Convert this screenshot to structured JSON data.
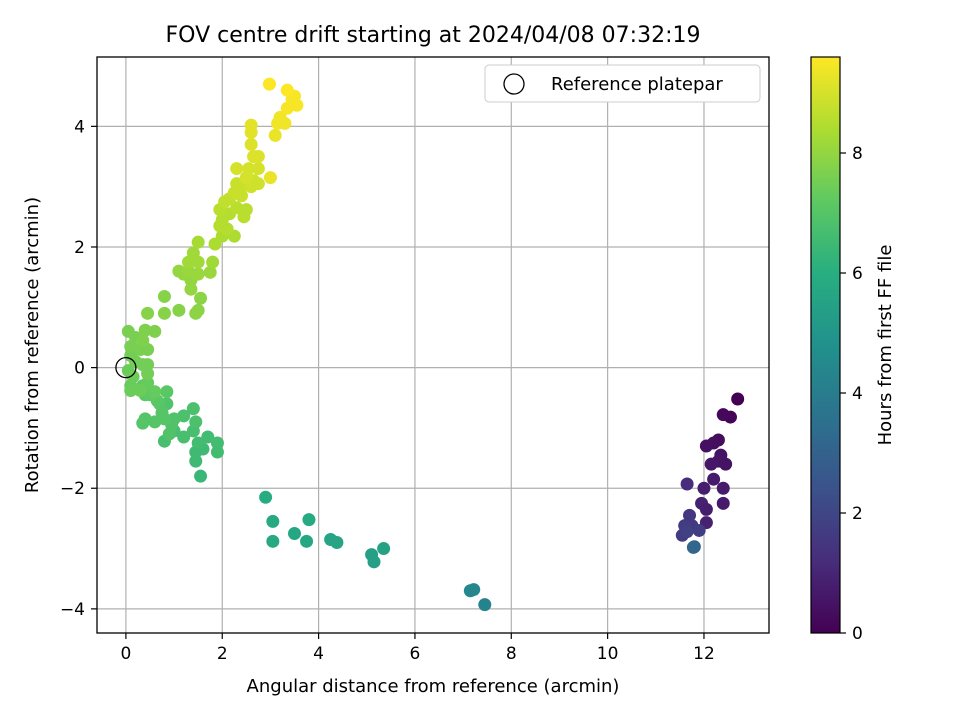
{
  "chart_data": {
    "type": "scatter",
    "title": "FOV centre drift starting at 2024/04/08 07:32:19",
    "xlabel": "Angular distance from reference (arcmin)",
    "ylabel": "Rotation from reference (arcmin)",
    "xlim": [
      -0.6,
      13.35
    ],
    "ylim": [
      -4.4,
      5.15
    ],
    "xticks": [
      0,
      2,
      4,
      6,
      8,
      10,
      12
    ],
    "yticks": [
      -4,
      -2,
      0,
      2,
      4
    ],
    "grid": true,
    "legend": {
      "placement": "top-right",
      "entries": [
        "Reference platepar"
      ]
    },
    "colorbar": {
      "label": "Hours from first FF file",
      "min": 0,
      "max": 9.6,
      "ticks": [
        0,
        2,
        4,
        6,
        8
      ],
      "colormap": "viridis"
    },
    "reference_point": {
      "x": 0,
      "y": 0,
      "label": "Reference platepar"
    },
    "series": [
      {
        "points": [
          [
            12.7,
            -0.52,
            0.0
          ],
          [
            12.55,
            -0.82,
            0.1
          ],
          [
            12.4,
            -0.78,
            0.2
          ],
          [
            12.3,
            -1.2,
            0.3
          ],
          [
            12.2,
            -1.25,
            0.35
          ],
          [
            12.05,
            -1.3,
            0.4
          ],
          [
            12.35,
            -1.45,
            0.5
          ],
          [
            12.3,
            -1.55,
            0.55
          ],
          [
            12.15,
            -1.6,
            0.6
          ],
          [
            12.45,
            -1.6,
            0.5
          ],
          [
            12.2,
            -1.85,
            0.7
          ],
          [
            12.0,
            -2.0,
            0.8
          ],
          [
            12.4,
            -2.0,
            0.7
          ],
          [
            12.4,
            -2.25,
            0.7
          ],
          [
            11.95,
            -2.25,
            0.9
          ],
          [
            12.05,
            -2.35,
            0.8
          ],
          [
            12.05,
            -2.57,
            0.9
          ],
          [
            11.65,
            -1.93,
            1.2
          ],
          [
            11.7,
            -2.45,
            1.5
          ],
          [
            11.75,
            -2.62,
            1.6
          ],
          [
            11.6,
            -2.62,
            1.7
          ],
          [
            11.55,
            -2.78,
            1.7
          ],
          [
            11.65,
            -2.72,
            1.8
          ],
          [
            11.9,
            -2.7,
            1.7
          ],
          [
            11.8,
            -2.97,
            2.6
          ],
          [
            11.78,
            -2.98,
            3.2
          ],
          [
            7.15,
            -3.7,
            4.5
          ],
          [
            7.22,
            -3.68,
            4.4
          ],
          [
            7.45,
            -3.93,
            4.2
          ],
          [
            5.1,
            -3.1,
            5.4
          ],
          [
            5.15,
            -3.22,
            5.4
          ],
          [
            5.35,
            -3.0,
            5.5
          ],
          [
            4.25,
            -2.85,
            5.6
          ],
          [
            4.38,
            -2.9,
            5.6
          ],
          [
            3.5,
            -2.75,
            5.7
          ],
          [
            3.75,
            -2.88,
            5.7
          ],
          [
            3.8,
            -2.52,
            5.8
          ],
          [
            3.05,
            -2.55,
            5.8
          ],
          [
            3.05,
            -2.88,
            5.8
          ],
          [
            2.9,
            -2.15,
            5.9
          ],
          [
            1.55,
            -1.8,
            6.4
          ],
          [
            1.45,
            -1.55,
            6.5
          ],
          [
            1.45,
            -1.4,
            6.5
          ],
          [
            1.6,
            -1.35,
            6.5
          ],
          [
            1.5,
            -1.25,
            6.6
          ],
          [
            1.9,
            -1.25,
            6.6
          ],
          [
            1.9,
            -1.4,
            6.6
          ],
          [
            1.7,
            -1.15,
            6.6
          ],
          [
            1.0,
            -1.05,
            6.7
          ],
          [
            1.2,
            -1.15,
            6.7
          ],
          [
            1.4,
            -1.05,
            6.7
          ],
          [
            0.8,
            -1.22,
            6.7
          ],
          [
            1.45,
            -0.9,
            6.8
          ],
          [
            1.4,
            -0.68,
            6.8
          ],
          [
            1.2,
            -0.8,
            6.8
          ],
          [
            1.0,
            -0.85,
            6.9
          ],
          [
            0.95,
            -0.95,
            6.9
          ],
          [
            0.9,
            -1.1,
            6.9
          ],
          [
            0.85,
            -0.6,
            6.9
          ],
          [
            0.7,
            -0.6,
            7.0
          ],
          [
            0.6,
            -0.9,
            7.0
          ],
          [
            0.4,
            -0.85,
            7.0
          ],
          [
            0.35,
            -0.92,
            7.0
          ],
          [
            0.75,
            -0.75,
            7.0
          ],
          [
            0.8,
            -0.85,
            7.0
          ],
          [
            0.85,
            -0.4,
            7.1
          ],
          [
            0.65,
            -0.55,
            7.1
          ],
          [
            0.4,
            -0.45,
            7.1
          ],
          [
            0.5,
            -0.45,
            7.2
          ],
          [
            0.35,
            -0.3,
            7.2
          ],
          [
            0.45,
            -0.25,
            7.3
          ],
          [
            0.6,
            -0.4,
            7.3
          ],
          [
            0.1,
            -0.3,
            7.3
          ],
          [
            0.15,
            -0.15,
            7.4
          ],
          [
            0.05,
            -0.05,
            7.4
          ],
          [
            0.1,
            -0.38,
            7.4
          ],
          [
            0.3,
            -0.38,
            7.4
          ],
          [
            0.45,
            -0.1,
            7.5
          ],
          [
            0.45,
            0.05,
            7.5
          ],
          [
            0.35,
            0.05,
            7.5
          ],
          [
            0.2,
            0.1,
            7.5
          ],
          [
            0.1,
            0.2,
            7.5
          ],
          [
            0.1,
            0.35,
            7.6
          ],
          [
            0.3,
            0.3,
            7.6
          ],
          [
            0.45,
            0.3,
            7.6
          ],
          [
            0.2,
            0.5,
            7.6
          ],
          [
            0.05,
            0.6,
            7.6
          ],
          [
            0.4,
            0.62,
            7.7
          ],
          [
            0.6,
            0.6,
            7.7
          ],
          [
            0.35,
            0.45,
            7.7
          ],
          [
            0.45,
            0.9,
            7.8
          ],
          [
            0.8,
            0.9,
            7.8
          ],
          [
            1.1,
            0.95,
            7.8
          ],
          [
            0.8,
            1.18,
            7.8
          ],
          [
            1.45,
            0.9,
            7.9
          ],
          [
            1.5,
            0.95,
            7.9
          ],
          [
            1.55,
            1.15,
            7.9
          ],
          [
            1.35,
            1.3,
            8.0
          ],
          [
            1.35,
            1.45,
            8.0
          ],
          [
            1.1,
            1.6,
            8.0
          ],
          [
            1.2,
            1.55,
            8.0
          ],
          [
            1.3,
            1.6,
            8.1
          ],
          [
            1.5,
            1.55,
            8.1
          ],
          [
            1.75,
            1.58,
            8.1
          ],
          [
            1.8,
            1.75,
            8.2
          ],
          [
            1.5,
            1.75,
            8.2
          ],
          [
            1.3,
            1.75,
            8.2
          ],
          [
            1.4,
            1.9,
            8.2
          ],
          [
            1.5,
            2.08,
            8.3
          ],
          [
            1.85,
            2.05,
            8.4
          ],
          [
            2.0,
            2.18,
            8.4
          ],
          [
            2.25,
            2.18,
            8.4
          ],
          [
            1.95,
            2.35,
            8.5
          ],
          [
            2.1,
            2.3,
            8.5
          ],
          [
            2.0,
            2.45,
            8.5
          ],
          [
            2.15,
            2.55,
            8.5
          ],
          [
            2.45,
            2.5,
            8.6
          ],
          [
            2.5,
            2.62,
            8.6
          ],
          [
            2.3,
            2.65,
            8.6
          ],
          [
            1.95,
            2.62,
            8.6
          ],
          [
            2.05,
            2.75,
            8.7
          ],
          [
            2.15,
            2.8,
            8.7
          ],
          [
            2.25,
            2.9,
            8.8
          ],
          [
            2.3,
            3.05,
            8.8
          ],
          [
            2.4,
            3.0,
            8.8
          ],
          [
            2.4,
            2.85,
            8.8
          ],
          [
            2.6,
            3.0,
            8.9
          ],
          [
            2.65,
            3.1,
            8.9
          ],
          [
            2.75,
            3.05,
            8.9
          ],
          [
            2.5,
            3.15,
            9.0
          ],
          [
            2.3,
            3.3,
            9.0
          ],
          [
            2.55,
            3.3,
            9.0
          ],
          [
            2.75,
            3.3,
            9.0
          ],
          [
            2.65,
            3.5,
            9.1
          ],
          [
            2.75,
            3.5,
            9.1
          ],
          [
            2.6,
            3.7,
            9.1
          ],
          [
            2.6,
            3.9,
            9.2
          ],
          [
            3.0,
            3.15,
            9.3
          ],
          [
            2.6,
            4.02,
            9.2
          ],
          [
            3.1,
            3.85,
            9.3
          ],
          [
            3.15,
            4.05,
            9.4
          ],
          [
            3.2,
            4.15,
            9.4
          ],
          [
            3.3,
            4.05,
            9.4
          ],
          [
            3.35,
            4.3,
            9.5
          ],
          [
            3.45,
            4.45,
            9.5
          ],
          [
            3.55,
            4.35,
            9.5
          ],
          [
            3.5,
            4.5,
            9.5
          ],
          [
            3.35,
            4.6,
            9.6
          ],
          [
            2.98,
            4.7,
            9.6
          ]
        ]
      }
    ]
  }
}
